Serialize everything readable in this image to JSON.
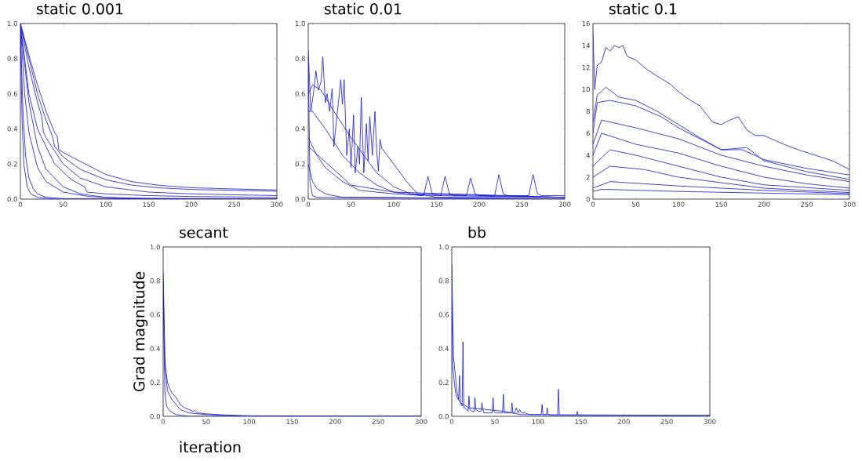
{
  "chart_data": [
    {
      "type": "line",
      "title": "static 0.001",
      "xlim": [
        0,
        300
      ],
      "ylim": [
        0,
        1
      ],
      "xticks": [
        0,
        50,
        100,
        150,
        200,
        250,
        300
      ],
      "yticks": [
        {
          "value": 0,
          "label": "0.0"
        },
        {
          "value": 0.2,
          "label": "0.2"
        },
        {
          "value": 0.4,
          "label": "0.4"
        },
        {
          "value": 0.6,
          "label": "0.6"
        },
        {
          "value": 0.8,
          "label": "0.8"
        },
        {
          "value": 1,
          "label": "1.0"
        }
      ],
      "series": [
        {
          "color": "#1414d2",
          "x": [
            0,
            10,
            20,
            30,
            40,
            43,
            45,
            60,
            80,
            100,
            130,
            160,
            200,
            250,
            300
          ],
          "values": [
            1,
            0.82,
            0.65,
            0.5,
            0.38,
            0.36,
            0.28,
            0.24,
            0.19,
            0.14,
            0.1,
            0.08,
            0.065,
            0.058,
            0.052
          ]
        },
        {
          "color": "#1414d2",
          "x": [
            0,
            10,
            20,
            30,
            38,
            40,
            50,
            70,
            100,
            130,
            160,
            200,
            250,
            300
          ],
          "values": [
            1,
            0.8,
            0.6,
            0.45,
            0.35,
            0.3,
            0.24,
            0.17,
            0.11,
            0.08,
            0.065,
            0.055,
            0.05,
            0.045
          ]
        },
        {
          "color": "#1414d2",
          "x": [
            0,
            10,
            20,
            25,
            27,
            30,
            50,
            70,
            100,
            150,
            200,
            300
          ],
          "values": [
            1,
            0.75,
            0.55,
            0.47,
            0.38,
            0.35,
            0.2,
            0.12,
            0.07,
            0.04,
            0.03,
            0.02
          ]
        },
        {
          "color": "#1414d2",
          "x": [
            0,
            10,
            20,
            40,
            60,
            75,
            78,
            100,
            150,
            200,
            300
          ],
          "values": [
            1,
            0.6,
            0.4,
            0.2,
            0.11,
            0.07,
            0.04,
            0.03,
            0.02,
            0.015,
            0.01
          ]
        },
        {
          "color": "#1414d2",
          "x": [
            0,
            5,
            10,
            20,
            30,
            50,
            80,
            120,
            200,
            300
          ],
          "values": [
            1,
            0.6,
            0.38,
            0.18,
            0.1,
            0.04,
            0.015,
            0.005,
            0.003,
            0.002
          ]
        },
        {
          "color": "#1414d2",
          "x": [
            0,
            10,
            20,
            30,
            50,
            70,
            100,
            150,
            300
          ],
          "values": [
            0.98,
            0.55,
            0.3,
            0.17,
            0.07,
            0.03,
            0.01,
            0.003,
            0
          ]
        },
        {
          "color": "#1414d2",
          "x": [
            0,
            3,
            6,
            10,
            15,
            20,
            30,
            50,
            100,
            300
          ],
          "values": [
            0.97,
            0.5,
            0.25,
            0.12,
            0.06,
            0.03,
            0.01,
            0.003,
            0.001,
            0.001
          ]
        },
        {
          "color": "#1414d2",
          "x": [
            0,
            2,
            4,
            8,
            12,
            20,
            40,
            300
          ],
          "values": [
            0.95,
            0.45,
            0.2,
            0.07,
            0.03,
            0.01,
            0,
            0
          ]
        }
      ]
    },
    {
      "type": "line",
      "title": "static 0.01",
      "xlim": [
        0,
        300
      ],
      "ylim": [
        0,
        1
      ],
      "xticks": [
        0,
        50,
        100,
        150,
        200,
        250,
        300
      ],
      "yticks": [
        {
          "value": 0,
          "label": "0.0"
        },
        {
          "value": 0.2,
          "label": "0.2"
        },
        {
          "value": 0.4,
          "label": "0.4"
        },
        {
          "value": 0.6,
          "label": "0.6"
        },
        {
          "value": 0.8,
          "label": "0.8"
        },
        {
          "value": 1,
          "label": "1.0"
        }
      ],
      "series": [
        {
          "color": "#1414d2",
          "x": [
            0,
            3,
            6,
            9,
            12,
            15,
            17,
            20,
            22,
            25,
            28,
            30,
            33,
            36,
            38,
            40,
            42,
            45,
            48,
            50,
            53,
            55,
            58,
            60,
            62,
            65,
            68,
            70,
            72,
            75,
            78,
            80,
            82,
            84,
            86,
            100,
            115,
            128,
            140,
            150,
            300
          ],
          "values": [
            0.85,
            0.5,
            0.6,
            0.73,
            0.62,
            0.67,
            0.81,
            0.55,
            0.6,
            0.5,
            0.63,
            0.3,
            0.45,
            0.58,
            0.68,
            0.54,
            0.68,
            0.25,
            0.4,
            0.18,
            0.48,
            0.15,
            0.3,
            0.2,
            0.58,
            0.15,
            0.43,
            0.22,
            0.47,
            0.25,
            0.5,
            0.28,
            0.16,
            0.34,
            0.29,
            0.2,
            0.1,
            0.03,
            0.02,
            0.01,
            0.01
          ]
        },
        {
          "color": "#1414d2",
          "x": [
            0,
            5,
            15,
            30,
            50,
            80,
            100,
            120,
            300
          ],
          "values": [
            0.6,
            0.65,
            0.62,
            0.5,
            0.35,
            0.15,
            0.07,
            0.03,
            0.01
          ]
        },
        {
          "color": "#1414d2",
          "x": [
            0,
            5,
            20,
            40,
            60,
            80,
            100,
            300
          ],
          "values": [
            0.5,
            0.5,
            0.4,
            0.25,
            0.15,
            0.08,
            0.04,
            0.01
          ]
        },
        {
          "color": "#1414d2",
          "x": [
            0,
            50,
            100,
            130,
            135,
            140,
            145,
            155,
            160,
            165,
            170,
            185,
            190,
            195,
            200,
            218,
            223,
            228,
            233,
            258,
            263,
            268,
            273,
            300
          ],
          "values": [
            0.3,
            0.08,
            0.04,
            0.02,
            0.02,
            0.13,
            0.03,
            0.02,
            0.13,
            0.03,
            0.02,
            0.02,
            0.12,
            0.03,
            0.02,
            0.02,
            0.14,
            0.03,
            0.02,
            0.02,
            0.14,
            0.03,
            0.02,
            0.02
          ]
        },
        {
          "color": "#1414d2",
          "x": [
            0,
            10,
            20,
            40,
            60,
            100,
            150,
            300
          ],
          "values": [
            0.35,
            0.25,
            0.18,
            0.1,
            0.05,
            0.03,
            0.02,
            0.01
          ]
        },
        {
          "color": "#1414d2",
          "x": [
            0,
            5,
            10,
            20,
            40,
            80,
            300
          ],
          "values": [
            0.2,
            0.1,
            0.06,
            0.03,
            0.01,
            0.01,
            0
          ]
        },
        {
          "color": "#1414d2",
          "x": [
            0,
            2,
            5,
            10,
            300
          ],
          "values": [
            0.8,
            0.1,
            0.02,
            0.01,
            0
          ]
        }
      ]
    },
    {
      "type": "line",
      "title": "static 0.1",
      "xlim": [
        0,
        300
      ],
      "ylim": [
        0,
        16
      ],
      "xticks": [
        0,
        50,
        100,
        150,
        200,
        250,
        300
      ],
      "yticks": [
        0,
        2,
        4,
        6,
        8,
        10,
        12,
        14,
        16
      ],
      "series": [
        {
          "color": "#1414d2",
          "x": [
            0,
            2,
            5,
            10,
            15,
            20,
            25,
            30,
            35,
            40,
            50,
            60,
            75,
            90,
            100,
            110,
            125,
            140,
            150,
            160,
            170,
            180,
            190,
            200,
            220,
            240,
            260,
            280,
            300
          ],
          "values": [
            15.2,
            10,
            12.2,
            12.5,
            13.8,
            13.5,
            14,
            13.8,
            14,
            13,
            12.7,
            12,
            11.2,
            10.5,
            9.8,
            9.2,
            8.5,
            7,
            6.8,
            7.2,
            7.5,
            6.3,
            5.8,
            5.8,
            5.1,
            4.5,
            4,
            3.5,
            2.7
          ]
        },
        {
          "color": "#1414d2",
          "x": [
            0,
            5,
            10,
            15,
            30,
            50,
            75,
            100,
            125,
            150,
            175,
            200,
            250,
            300
          ],
          "values": [
            7,
            9.5,
            9.8,
            10.2,
            9.3,
            9,
            8,
            6.8,
            5.6,
            4.5,
            4.5,
            3.6,
            2.8,
            2.2
          ]
        },
        {
          "color": "#1414d2",
          "x": [
            0,
            5,
            20,
            50,
            80,
            100,
            150,
            180,
            200,
            250,
            300
          ],
          "values": [
            6,
            8.8,
            9,
            8.5,
            7.5,
            6.5,
            4.5,
            4.7,
            3.5,
            2.5,
            1.8
          ]
        },
        {
          "color": "#1414d2",
          "x": [
            0,
            10,
            50,
            100,
            150,
            200,
            250,
            300
          ],
          "values": [
            5,
            7.2,
            6.5,
            5.5,
            4,
            3,
            2.2,
            1.6
          ]
        },
        {
          "color": "#1414d2",
          "x": [
            0,
            10,
            50,
            100,
            150,
            200,
            250,
            300
          ],
          "values": [
            4,
            6,
            5,
            4.2,
            3,
            2,
            1.4,
            1
          ]
        },
        {
          "color": "#1414d2",
          "x": [
            0,
            20,
            50,
            100,
            150,
            200,
            300
          ],
          "values": [
            3,
            4.5,
            4,
            3,
            2,
            1.3,
            0.8
          ]
        },
        {
          "color": "#1414d2",
          "x": [
            0,
            20,
            60,
            100,
            200,
            300
          ],
          "values": [
            2,
            3,
            2.7,
            2,
            1,
            0.6
          ]
        },
        {
          "color": "#1414d2",
          "x": [
            0,
            20,
            100,
            200,
            300
          ],
          "values": [
            1,
            1.6,
            1.2,
            0.8,
            0.5
          ]
        },
        {
          "color": "#1414d2",
          "x": [
            0,
            10,
            100,
            300
          ],
          "values": [
            0.7,
            0.9,
            0.7,
            0.4
          ]
        }
      ]
    },
    {
      "type": "line",
      "title": "secant",
      "xlabel": "iteration",
      "ylabel": "Grad magnitude",
      "xlim": [
        0,
        300
      ],
      "ylim": [
        0,
        1
      ],
      "xticks": [
        0,
        50,
        100,
        150,
        200,
        250,
        300
      ],
      "yticks": [
        {
          "value": 0,
          "label": "0.0"
        },
        {
          "value": 0.2,
          "label": "0.2"
        },
        {
          "value": 0.4,
          "label": "0.4"
        },
        {
          "value": 0.6,
          "label": "0.6"
        },
        {
          "value": 0.8,
          "label": "0.8"
        },
        {
          "value": 1,
          "label": "1.0"
        }
      ],
      "series": [
        {
          "color": "#1414d2",
          "x": [
            0,
            1,
            2,
            3,
            5,
            8,
            10,
            15,
            20,
            25,
            35,
            37,
            40,
            50,
            70,
            100,
            300
          ],
          "values": [
            0.85,
            0.6,
            0.35,
            0.28,
            0.2,
            0.16,
            0.14,
            0.11,
            0.07,
            0.05,
            0.03,
            0.035,
            0.02,
            0.015,
            0.008,
            0.003,
            0
          ]
        },
        {
          "color": "#1414d2",
          "x": [
            0,
            2,
            5,
            10,
            15,
            20,
            30,
            50,
            100,
            300
          ],
          "values": [
            0.8,
            0.3,
            0.15,
            0.1,
            0.07,
            0.04,
            0.02,
            0.01,
            0,
            0
          ]
        },
        {
          "color": "#1414d2",
          "x": [
            0,
            2,
            4,
            8,
            15,
            30,
            300
          ],
          "values": [
            0.7,
            0.15,
            0.06,
            0.03,
            0.01,
            0,
            0
          ]
        }
      ]
    },
    {
      "type": "line",
      "title": "bb",
      "xlim": [
        0,
        300
      ],
      "ylim": [
        0,
        1
      ],
      "xticks": [
        0,
        50,
        100,
        150,
        200,
        250,
        300
      ],
      "yticks": [
        {
          "value": 0,
          "label": "0.0"
        },
        {
          "value": 0.2,
          "label": "0.2"
        },
        {
          "value": 0.4,
          "label": "0.4"
        },
        {
          "value": 0.6,
          "label": "0.6"
        },
        {
          "value": 0.8,
          "label": "0.8"
        },
        {
          "value": 1,
          "label": "1.0"
        }
      ],
      "series": [
        {
          "color": "#1414d2",
          "x": [
            0,
            2,
            4,
            6,
            8,
            9,
            10,
            12,
            13,
            14,
            16,
            19,
            20,
            21,
            23,
            26,
            27,
            28,
            31,
            34,
            35,
            37,
            44,
            47,
            48,
            49,
            51,
            54,
            59,
            60,
            61,
            63,
            66,
            69,
            70,
            71,
            73,
            75,
            77,
            79,
            81,
            85,
            90,
            100,
            104,
            105,
            106,
            108,
            110,
            111,
            112,
            120,
            123,
            124,
            125,
            128,
            135,
            145,
            146,
            147,
            150,
            300
          ],
          "values": [
            0.9,
            0.35,
            0.25,
            0.15,
            0.1,
            0.24,
            0.08,
            0.06,
            0.44,
            0.05,
            0.05,
            0.03,
            0.12,
            0.04,
            0.03,
            0.03,
            0.11,
            0.04,
            0.03,
            0.03,
            0.08,
            0.02,
            0.02,
            0.02,
            0.11,
            0.03,
            0.02,
            0.02,
            0.02,
            0.13,
            0.02,
            0.02,
            0.02,
            0.02,
            0.08,
            0.02,
            0.02,
            0.05,
            0.02,
            0.04,
            0.02,
            0.02,
            0.01,
            0.01,
            0.01,
            0.07,
            0.01,
            0.01,
            0.01,
            0.05,
            0.01,
            0.005,
            0.005,
            0.16,
            0.005,
            0.005,
            0.005,
            0.005,
            0.03,
            0.005,
            0.005,
            0.005
          ]
        },
        {
          "color": "#1414d2",
          "x": [
            0,
            1,
            3,
            5,
            10,
            20,
            40,
            60,
            80,
            300
          ],
          "values": [
            0.7,
            0.3,
            0.2,
            0.12,
            0.08,
            0.05,
            0.04,
            0.03,
            0.01,
            0.005
          ]
        }
      ]
    }
  ]
}
